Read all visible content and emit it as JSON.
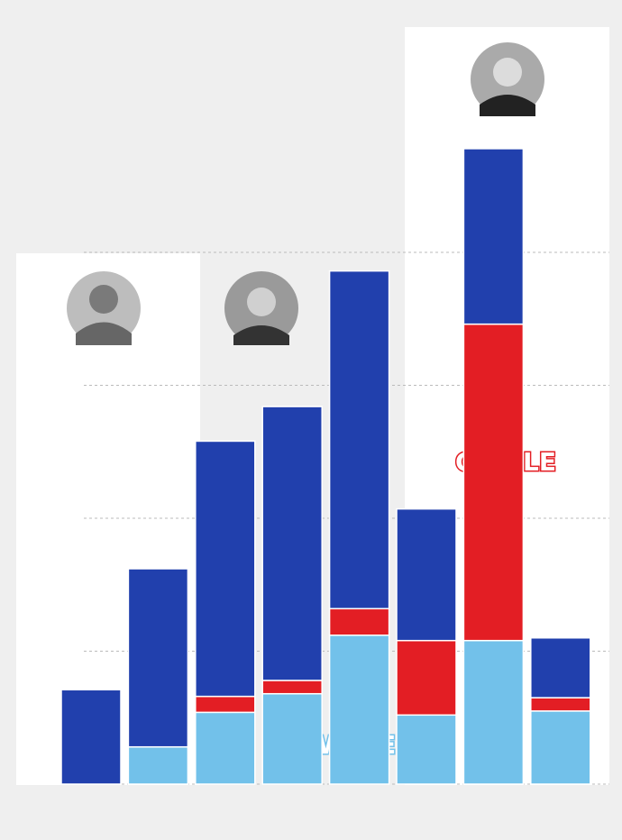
{
  "chart_data": {
    "type": "stacked-bar",
    "series": [
      {
        "color": "#72c1ea",
        "values": [
          0,
          0.28,
          0.54,
          0.68,
          1.12,
          0.52,
          1.08,
          0.55
        ]
      },
      {
        "color": "#e31e24",
        "values": [
          0,
          0,
          0.12,
          0.1,
          0.2,
          0.56,
          2.38,
          0.1
        ]
      },
      {
        "color": "#2140ad",
        "values": [
          0.71,
          1.34,
          1.92,
          2.06,
          2.54,
          0.99,
          1.32,
          0.45
        ]
      }
    ],
    "ylim": [
      0,
      5
    ],
    "yticks": [
      0,
      1,
      2,
      3,
      4
    ],
    "grid": true,
    "annotations": [
      {
        "text": "C",
        "color": "#e31e24"
      },
      {
        "text": "LE",
        "color": "#e31e24"
      },
      {
        "text": "W",
        "color": "#ffffff"
      },
      {
        "text": "E",
        "color": "#ffffff"
      }
    ]
  }
}
